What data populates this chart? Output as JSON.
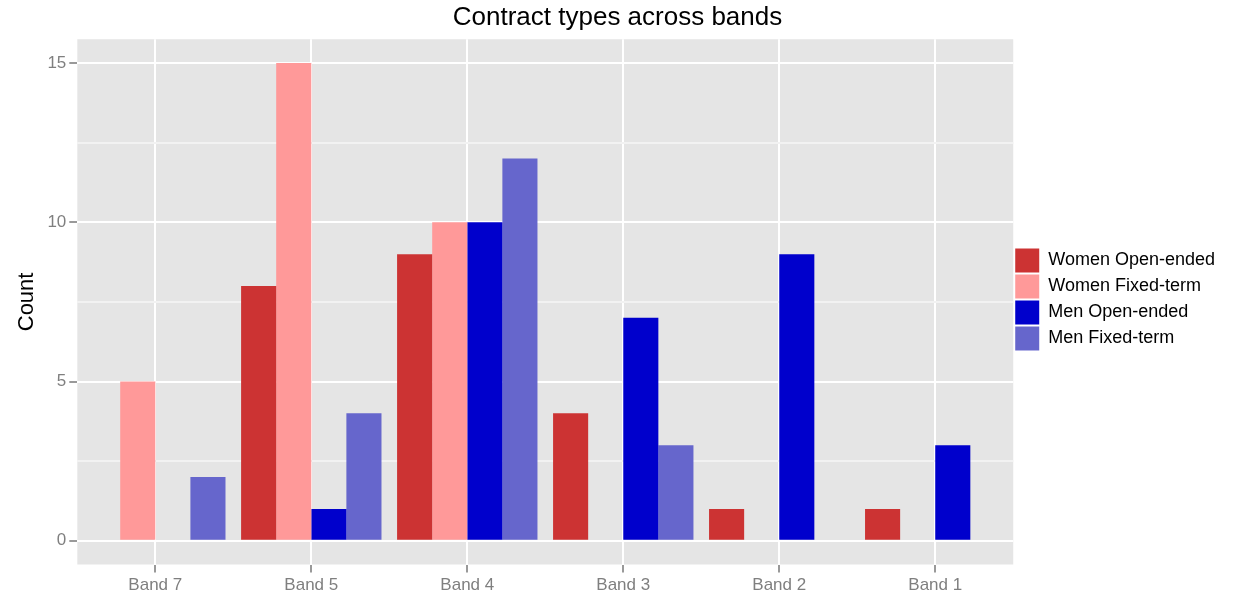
{
  "chart_data": {
    "type": "bar",
    "title": "Contract types across bands",
    "ylabel": "Count",
    "categories": [
      "Band 7",
      "Band 5",
      "Band 4",
      "Band 3",
      "Band 2",
      "Band 1"
    ],
    "series": [
      {
        "name": "Women Open-ended",
        "color": "#cc3333",
        "values": [
          null,
          8,
          9,
          4,
          1,
          1
        ]
      },
      {
        "name": "Women Fixed-term",
        "color": "#ff9999",
        "values": [
          5,
          15,
          10,
          null,
          null,
          null
        ]
      },
      {
        "name": "Men Open-ended",
        "color": "#0000cc",
        "values": [
          null,
          1,
          10,
          7,
          9,
          3
        ]
      },
      {
        "name": "Men Fixed-term",
        "color": "#6666cc",
        "values": [
          2,
          4,
          12,
          3,
          null,
          null
        ]
      }
    ],
    "ylim": [
      -0.75,
      15.75
    ],
    "yticks": [
      0,
      {
        "value": 2.5,
        "label": null
      },
      5,
      {
        "value": 7.5,
        "label": null
      },
      10,
      {
        "value": 12.5,
        "label": null
      },
      15
    ],
    "grid": true,
    "legend": "right"
  }
}
